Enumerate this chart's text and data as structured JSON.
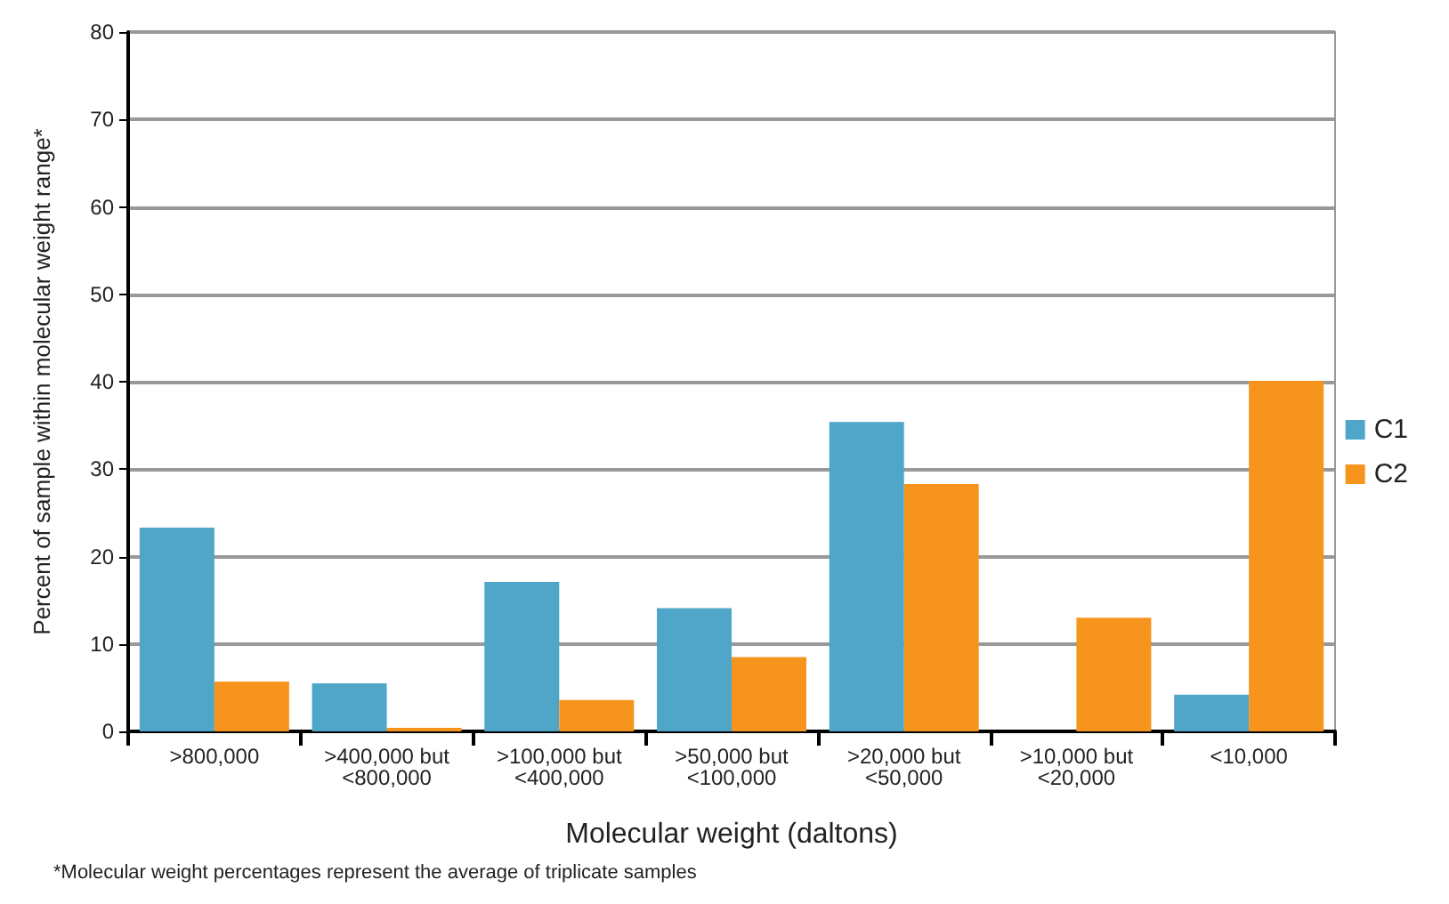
{
  "chart_data": {
    "type": "bar",
    "xlabel": "Molecular weight (daltons)",
    "ylabel": "Percent of sample within molecular weight range*",
    "categories": [
      ">800,000",
      ">400,000 but\n<800,000",
      ">100,000 but\n<400,000",
      ">50,000 but\n<100,000",
      ">20,000 but\n<50,000",
      ">10,000 but\n<20,000",
      "<10,000"
    ],
    "series": [
      {
        "name": "C1",
        "color": "#4fa6c8",
        "values": [
          23.3,
          5.5,
          17.1,
          14.1,
          35.4,
          0,
          4.2
        ]
      },
      {
        "name": "C2",
        "color": "#f7941d",
        "values": [
          5.7,
          0.4,
          3.6,
          8.5,
          28.3,
          13.0,
          40.1
        ]
      }
    ],
    "ylim": [
      0,
      80
    ],
    "yticks": [
      0,
      10,
      20,
      30,
      40,
      50,
      60,
      70,
      80
    ],
    "grid": "y",
    "legend": "right",
    "annotations": [
      "*Molecular weight percentages represent the average of triplicate samples"
    ]
  }
}
